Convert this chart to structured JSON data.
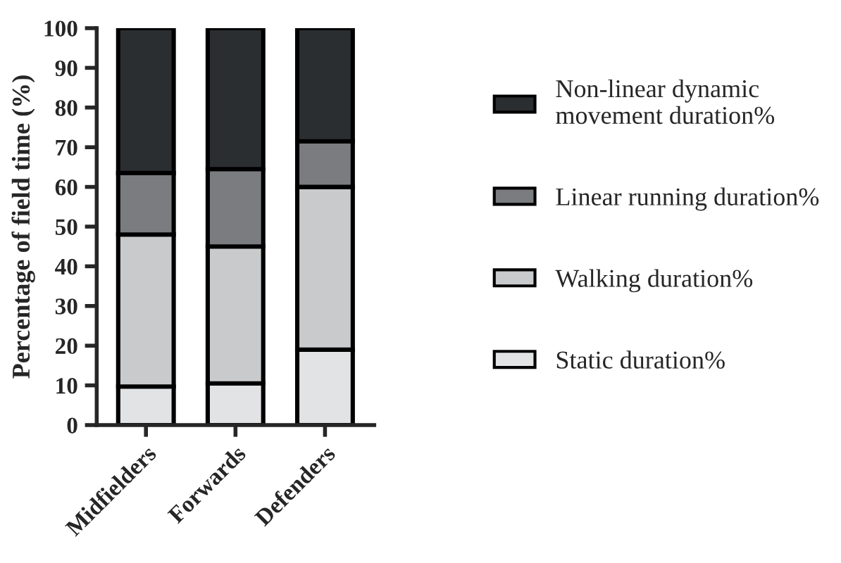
{
  "chart_data": {
    "type": "bar",
    "stacked": true,
    "ylabel": "Percentage of field time (%)",
    "categories": [
      "Midfielders",
      "Forwards",
      "Defenders"
    ],
    "series": [
      {
        "name": "Static duration%",
        "color": "#e2e3e5",
        "values": [
          9.7,
          10.5,
          19
        ]
      },
      {
        "name": "Walking duration%",
        "color": "#c9cacc",
        "values": [
          38.3,
          34.5,
          41
        ]
      },
      {
        "name": "Linear running duration%",
        "color": "#7b7c80",
        "values": [
          15.5,
          19.5,
          11.5
        ]
      },
      {
        "name": "Non-linear dynamic movement duration%",
        "color": "#2b2e31",
        "values": [
          36.5,
          35.5,
          28.5
        ]
      }
    ],
    "ylim": [
      0,
      100
    ],
    "yticks": [
      0,
      10,
      20,
      30,
      40,
      50,
      60,
      70,
      80,
      90,
      100
    ],
    "grid": false,
    "legend": "right"
  }
}
